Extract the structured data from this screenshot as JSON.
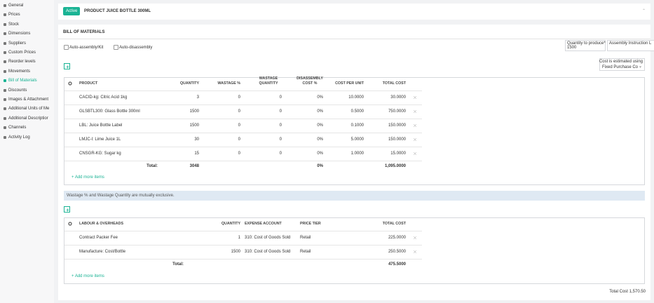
{
  "sidebar": {
    "items": [
      "General",
      "Prices",
      "Stock",
      "Dimensions",
      "Suppliers",
      "Custom Prices",
      "Reorder levels",
      "Movements",
      "Bill of Materials",
      "Discounts",
      "Images & Attachment",
      "Additional Units of Me",
      "Additional Descriptior",
      "Channels",
      "Activity Log"
    ]
  },
  "header": {
    "status": "Active",
    "title": "PRODUCT JUICE BOTTLE 300ML"
  },
  "bom": {
    "title": "BILL OF MATERIALS",
    "options": [
      "Auto-assembly/Kit",
      "Auto-disassembly"
    ],
    "quantity_label": "Quantity to produce*",
    "quantity": "1500",
    "instruction_label": "Assembly Instruction L",
    "cost_label": "Cost is estimated using",
    "cost_method": "Fixed Purchase Co"
  },
  "materials": {
    "columns": [
      "PRODUCT",
      "QUANTITY",
      "WASTAGE %",
      "WASTAGE QUANTITY",
      "DISASSEMBLY COST %",
      "COST PER UNIT",
      "TOTAL COST"
    ],
    "rows": [
      [
        "CACID-kg: Citric Acid 1kg",
        "3",
        "0",
        "0",
        "0%",
        "10.0000",
        "30.0000"
      ],
      [
        "GLSBTL300: Glass Bottle 300ml",
        "1500",
        "0",
        "0",
        "0%",
        "0.5000",
        "750.0000"
      ],
      [
        "LBL: Juice Bottle Label",
        "1500",
        "0",
        "0",
        "0%",
        "0.1000",
        "150.0000"
      ],
      [
        "LMJC-l: Lime Juice 1L",
        "30",
        "0",
        "0",
        "0%",
        "5.0000",
        "150.0000"
      ],
      [
        "CNSGR-KG: Sugar kg",
        "15",
        "0",
        "0",
        "0%",
        "1.0000",
        "15.0000"
      ]
    ],
    "total": {
      "label": "Total:",
      "quantity": "3048",
      "disassembly": "0%",
      "total_cost": "1,095.0000"
    },
    "add": "+ Add more items"
  },
  "notice": "Wastage % and Wastage Quantity are mutually exclusive.",
  "labour": {
    "columns": [
      "LABOUR & OVERHEADS",
      "QUANTITY",
      "EXPENSE ACCOUNT",
      "PRICE TIER",
      "TOTAL COST"
    ],
    "rows": [
      [
        "Contract Packer Fee",
        "1",
        "310: Cost of Goods Sold",
        "Retail",
        "225.0000"
      ],
      [
        "Manufacture: Cost/Bottle",
        "1500",
        "310: Cost of Goods Sold",
        "Retail",
        "250.5000"
      ]
    ],
    "total": {
      "label": "Total:",
      "total_cost": "475.5000"
    },
    "add": "+ Add more items"
  },
  "total_cost": "Total Cost 1,570.50"
}
